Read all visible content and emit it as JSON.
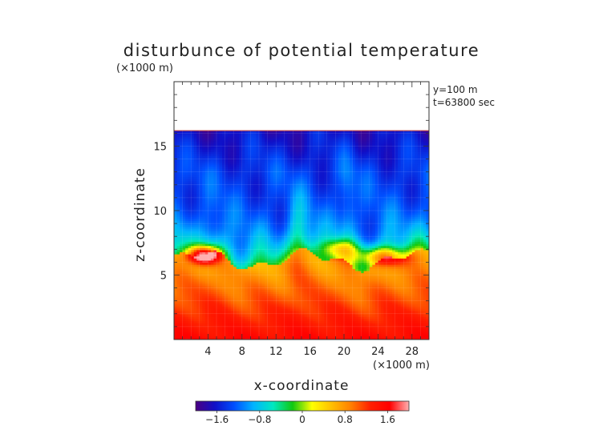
{
  "chart_data": {
    "type": "heatmap",
    "title": "disturbunce of potential temperature",
    "xlabel": "x-coordinate",
    "ylabel": "z-coordinate",
    "x_unit": "(×1000 m)",
    "y_unit": "(×1000 m)",
    "annotations": [
      "y=100 m",
      "t=63800 sec"
    ],
    "xlim": [
      0,
      30
    ],
    "ylim": [
      0,
      20
    ],
    "x_ticks": [
      4,
      8,
      12,
      16,
      20,
      24,
      28
    ],
    "y_ticks": [
      5,
      10,
      15
    ],
    "data_top": 16.2,
    "colorbar": {
      "range": [
        -2.0,
        2.0
      ],
      "ticks": [
        -1.6,
        -0.8,
        0,
        0.8,
        1.6
      ],
      "tick_labels": [
        "−1.6",
        "−0.8",
        "0",
        "0.8",
        "1.6"
      ],
      "colors": [
        "#4b0082",
        "#1010c8",
        "#0050ff",
        "#00b4ff",
        "#00e8c0",
        "#10c810",
        "#ffff00",
        "#ffc000",
        "#ff8000",
        "#ff2000",
        "#ff0000",
        "#ffb0b0"
      ]
    }
  }
}
